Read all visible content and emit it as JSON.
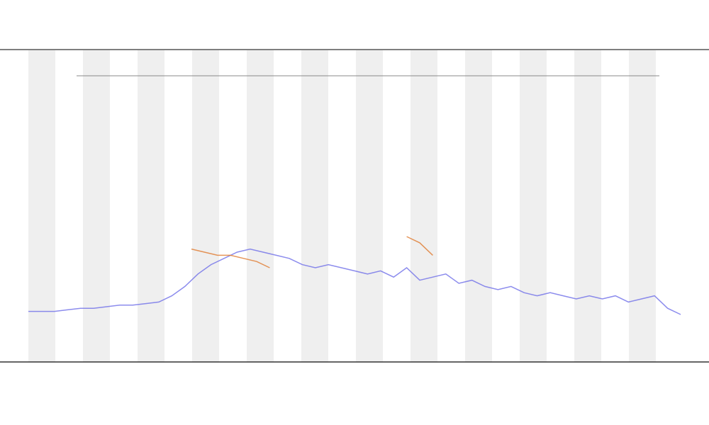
{
  "chart_data": {
    "type": "line",
    "xlim": [
      0,
      100
    ],
    "ylim": [
      0,
      100
    ],
    "series": [
      {
        "color": "#6f6fe8",
        "x": [
          0,
          2,
          4,
          6,
          8,
          10,
          12,
          14,
          16,
          18,
          20,
          22,
          24,
          26,
          28,
          30,
          32,
          34,
          36,
          38,
          40,
          42,
          44,
          46,
          48,
          50,
          52,
          54,
          56,
          58,
          60,
          62,
          64,
          66,
          68,
          70,
          72,
          74,
          76,
          78,
          80,
          82,
          84,
          86,
          88,
          90,
          92,
          94,
          96,
          98,
          100
        ],
        "values": [
          16,
          16,
          16,
          16.5,
          17,
          17,
          17.5,
          18,
          18,
          18.5,
          19,
          21,
          24,
          28,
          31,
          33,
          35,
          36,
          35,
          34,
          33,
          31,
          30,
          31,
          30,
          29,
          28,
          29,
          27,
          30,
          26,
          27,
          28,
          25,
          26,
          24,
          23,
          24,
          22,
          21,
          22,
          21,
          20,
          21,
          20,
          21,
          19,
          20,
          21,
          17,
          15
        ]
      },
      {
        "color": "#e07a30",
        "x": [
          25,
          27,
          29,
          31,
          33,
          35,
          37,
          39,
          58,
          60,
          62
        ],
        "values": [
          36,
          35,
          34,
          34,
          33,
          32,
          30,
          null,
          40,
          38,
          34
        ]
      }
    ]
  }
}
